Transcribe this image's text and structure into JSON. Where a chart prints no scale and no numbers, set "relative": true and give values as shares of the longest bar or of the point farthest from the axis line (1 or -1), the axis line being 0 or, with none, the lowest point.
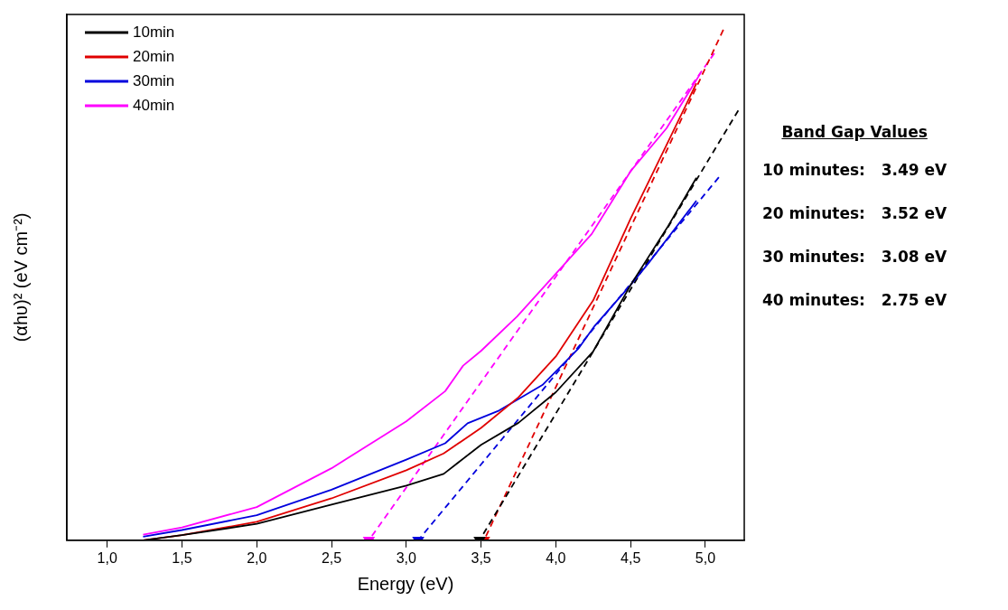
{
  "chart_data": {
    "type": "line",
    "relative": true,
    "xlabel": "Energy (eV)",
    "ylabel": "(αhυ)² (eV cm⁻²)",
    "xlim": [
      0.73,
      5.26
    ],
    "xticks": [
      {
        "value": 1,
        "label": "1,0"
      },
      {
        "value": 1.5,
        "label": "1,5"
      },
      {
        "value": 2,
        "label": "2,0"
      },
      {
        "value": 2.5,
        "label": "2,5"
      },
      {
        "value": 3,
        "label": "3,0"
      },
      {
        "value": 3.5,
        "label": "3,5"
      },
      {
        "value": 4,
        "label": "4,0"
      },
      {
        "value": 4.5,
        "label": "4,5"
      },
      {
        "value": 5,
        "label": "5,0"
      }
    ],
    "legend": "top left",
    "grid": false,
    "series": [
      {
        "name": "10min",
        "color": "#000000",
        "x": [
          1.24,
          1.5,
          2.0,
          2.5,
          3.0,
          3.25,
          3.5,
          3.75,
          4.0,
          4.25,
          4.5,
          4.75,
          4.94
        ],
        "values": [
          0,
          0.01,
          0.032,
          0.07,
          0.107,
          0.13,
          0.187,
          0.23,
          0.29,
          0.37,
          0.5,
          0.615,
          0.71
        ]
      },
      {
        "name": "20min",
        "color": "#e00000",
        "x": [
          1.24,
          1.5,
          2.0,
          2.5,
          3.0,
          3.25,
          3.5,
          3.75,
          4.0,
          4.25,
          4.5,
          4.75,
          4.94
        ],
        "values": [
          0,
          0.01,
          0.036,
          0.082,
          0.137,
          0.17,
          0.22,
          0.28,
          0.36,
          0.47,
          0.63,
          0.78,
          0.895
        ]
      },
      {
        "name": "30min",
        "color": "#0000dd",
        "x": [
          1.24,
          1.5,
          2.0,
          2.5,
          3.0,
          3.26,
          3.41,
          3.62,
          3.91,
          4.15,
          4.26,
          4.5,
          4.62,
          4.94
        ],
        "values": [
          0.007,
          0.02,
          0.049,
          0.099,
          0.158,
          0.19,
          0.229,
          0.254,
          0.304,
          0.375,
          0.42,
          0.5,
          0.543,
          0.665
        ]
      },
      {
        "name": "40min",
        "color": "#ff00ff",
        "x": [
          1.24,
          1.5,
          2.0,
          2.5,
          3.0,
          3.26,
          3.38,
          3.5,
          3.74,
          4.0,
          4.24,
          4.5,
          4.74,
          4.97
        ],
        "values": [
          0.011,
          0.025,
          0.065,
          0.141,
          0.233,
          0.292,
          0.342,
          0.371,
          0.438,
          0.522,
          0.6,
          0.723,
          0.807,
          0.916
        ]
      },
      {
        "type": "line",
        "color": "#000000",
        "line_style": "dashed",
        "marker": "triangle",
        "x": [
          3.49,
          5.22
        ],
        "values": [
          0,
          0.842
        ]
      },
      {
        "type": "line",
        "color": "#e00000",
        "line_style": "dashed",
        "marker": "triangle",
        "x": [
          3.52,
          5.12
        ],
        "values": [
          0,
          1
        ]
      },
      {
        "type": "line",
        "color": "#0000dd",
        "line_style": "dashed",
        "marker": "triangle",
        "x": [
          3.08,
          5.09
        ],
        "values": [
          0,
          0.711
        ]
      },
      {
        "type": "line",
        "color": "#ff00ff",
        "line_style": "dashed",
        "marker": "triangle",
        "x": [
          2.75,
          5.06
        ],
        "values": [
          0,
          0.954
        ]
      }
    ],
    "annotations": [
      "Band Gap Values",
      "10 minutes:   3.49 eV",
      "20 minutes:   3.52 eV",
      "30 minutes:   3.08 eV",
      "40 minutes:   2.75 eV"
    ]
  }
}
